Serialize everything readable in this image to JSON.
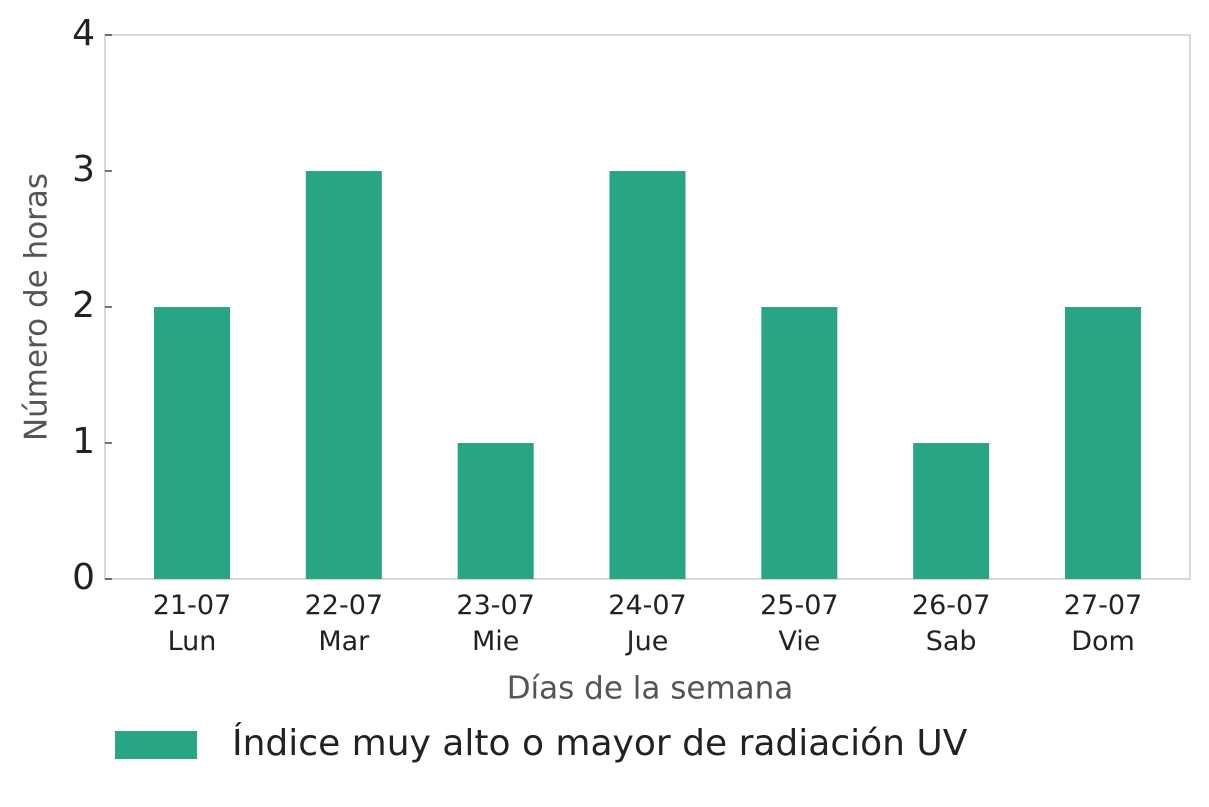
{
  "chart_data": {
    "type": "bar",
    "categories": [
      "21-07\nLun",
      "22-07\nMar",
      "23-07\nMie",
      "24-07\nJue",
      "25-07\nVie",
      "26-07\nSab",
      "27-07\nDom"
    ],
    "series": [
      {
        "name": "Índice muy alto o mayor de radiación UV",
        "color": "#27a584",
        "values": [
          2,
          3,
          1,
          3,
          2,
          1,
          2
        ]
      }
    ],
    "xlabel": "Días de la semana",
    "ylabel": "Número de horas",
    "ylim": [
      0,
      4
    ],
    "yticks": [
      0,
      1,
      2,
      3,
      4
    ],
    "grid": false,
    "legend": "bottom"
  }
}
